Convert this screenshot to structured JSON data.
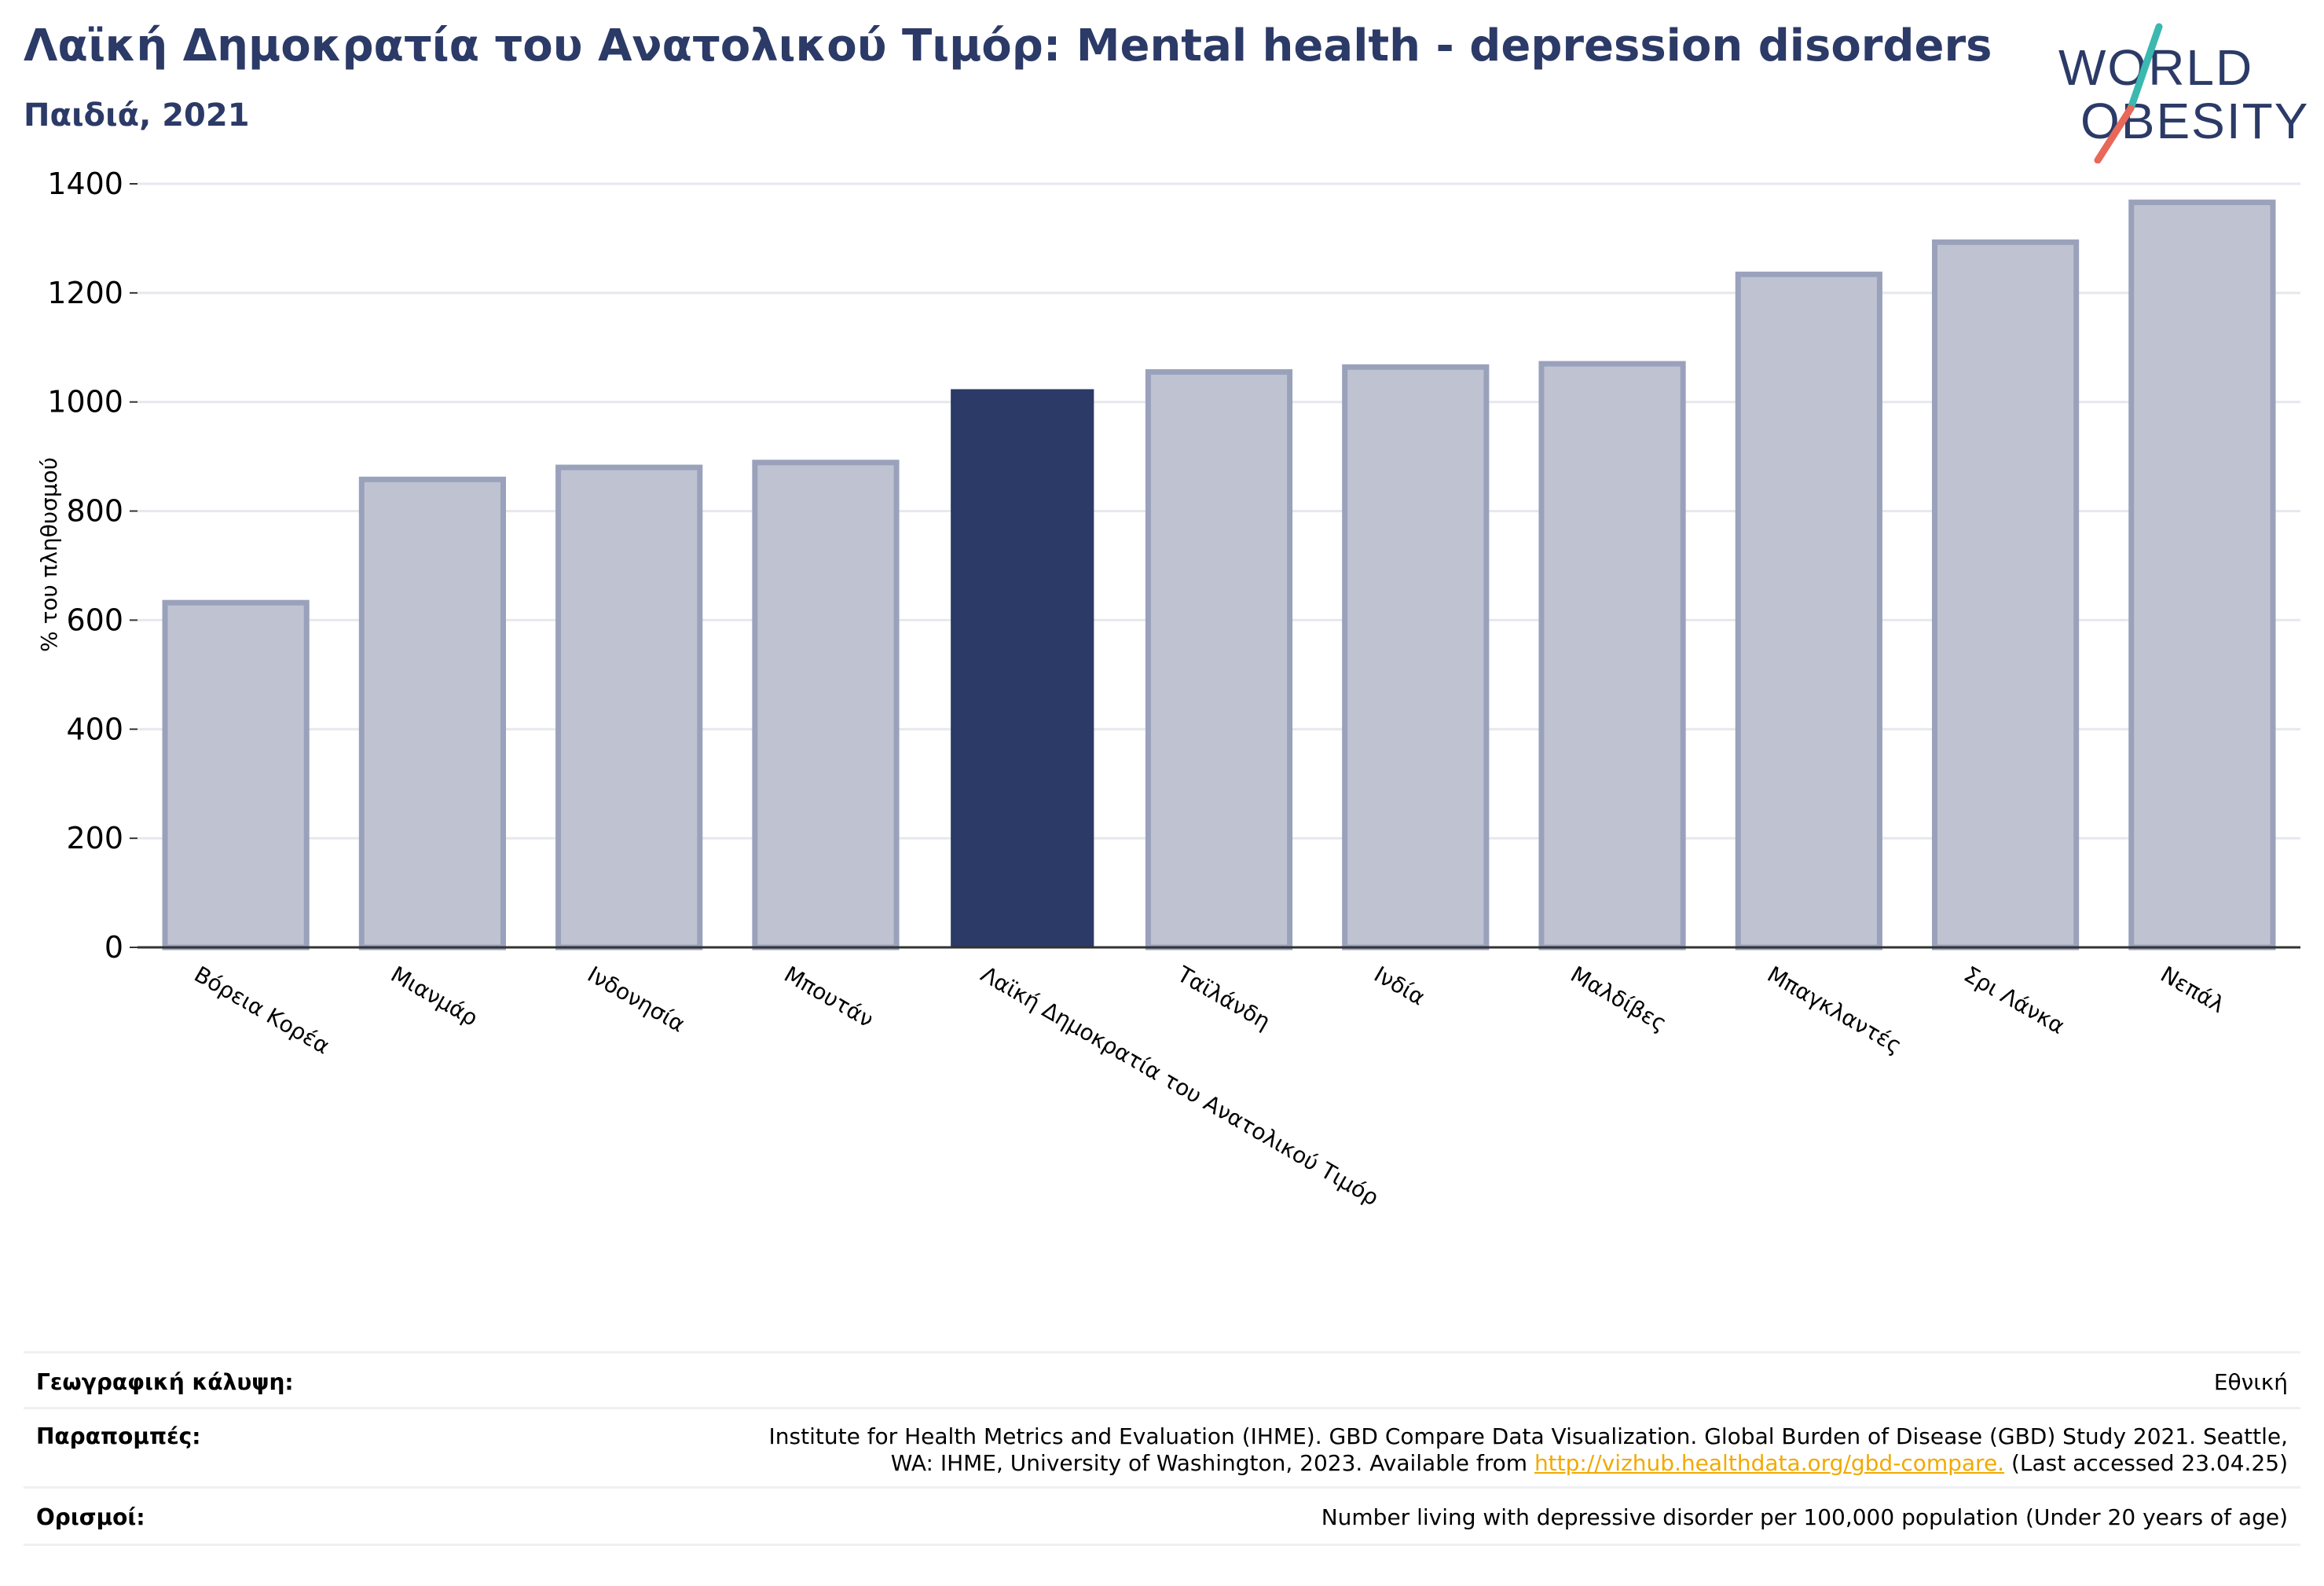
{
  "header": {
    "title": "Λαϊκή Δημοκρατία του Ανατολικού Τιμόρ: Mental health - depression disorders",
    "subtitle": "Παιδιά, 2021"
  },
  "logo": {
    "line1": "WORLD",
    "line2": "OBESITY",
    "text_color": "#2b3a67",
    "slash_top_color": "#3bb8b0",
    "slash_bottom_color": "#e8685a"
  },
  "chart_data": {
    "type": "bar",
    "ylabel": "% του πληθυσμού",
    "xlabel": "",
    "ylim": [
      0,
      1400
    ],
    "yticks": [
      0,
      200,
      400,
      600,
      800,
      1000,
      1200,
      1400
    ],
    "grid": true,
    "categories": [
      "Βόρεια Κορέα",
      "Μιανμάρ",
      "Ινδονησία",
      "Μπουτάν",
      "Λαϊκή Δημοκρατία του Ανατολικού Τιμόρ",
      "Ταϊλάνδη",
      "Ινδία",
      "Μαλδίβες",
      "Μπαγκλαντές",
      "Σρι Λάνκα",
      "Νεπάλ"
    ],
    "values": [
      632,
      858,
      880,
      889,
      1022,
      1055,
      1064,
      1070,
      1234,
      1293,
      1366
    ],
    "highlight_index": 4,
    "colors": {
      "bar_fill": "#bfc3d1",
      "bar_stroke": "#9aa1bb",
      "highlight": "#2b3a67",
      "grid": "#e6e8ee",
      "axis": "#333333"
    }
  },
  "footer": {
    "geo_label": "Γεωγραφική κάλυψη:",
    "geo_value": "Εθνική",
    "ref_label": "Παραπομπές:",
    "ref_line1": "Institute for Health Metrics and Evaluation (IHME). GBD Compare Data Visualization. Global Burden of Disease (GBD) Study 2021. Seattle,",
    "ref_line2_pre": "WA: IHME, University of Washington, 2023. Available from ",
    "ref_link": "http://vizhub.healthdata.org/gbd-compare.",
    "ref_line2_post": " (Last accessed 23.04.25)",
    "def_label": "Ορισμοί:",
    "def_value": "Number living with depressive disorder per 100,000 population (Under 20 years of age)"
  }
}
